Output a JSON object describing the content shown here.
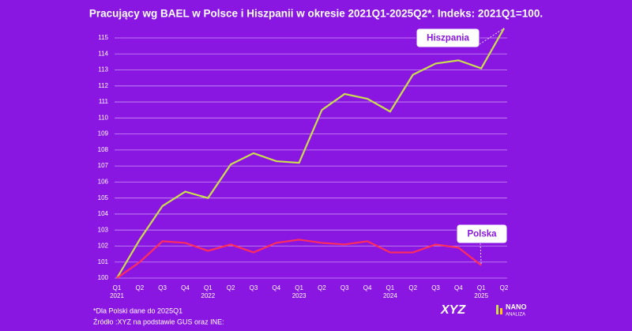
{
  "chart_data": {
    "type": "line",
    "title": "Pracujący wg BAEL w Polsce i Hiszpanii w okresie 2021Q1-2025Q2*. Indeks: 2021Q1=100.",
    "categories": [
      "Q1",
      "Q2",
      "Q3",
      "Q4",
      "Q1",
      "Q2",
      "Q3",
      "Q4",
      "Q1",
      "Q2",
      "Q3",
      "Q4",
      "Q1",
      "Q2",
      "Q3",
      "Q4",
      "Q1",
      "Q2"
    ],
    "years": [
      "2021",
      null,
      null,
      null,
      "2022",
      null,
      null,
      null,
      "2023",
      null,
      null,
      null,
      "2024",
      null,
      null,
      null,
      "2025",
      null
    ],
    "series": [
      {
        "name": "Hiszpania",
        "color": "#c9e04c",
        "values": [
          100,
          102.4,
          104.5,
          105.4,
          105.0,
          107.1,
          107.8,
          107.3,
          107.2,
          110.5,
          111.5,
          111.2,
          110.4,
          112.7,
          113.4,
          113.6,
          113.1,
          115.6
        ]
      },
      {
        "name": "Polska",
        "color": "#ff2d5c",
        "values": [
          100,
          101.0,
          102.3,
          102.2,
          101.7,
          102.1,
          101.6,
          102.2,
          102.4,
          102.2,
          102.1,
          102.3,
          101.6,
          101.6,
          102.1,
          101.9,
          100.8,
          null
        ]
      }
    ],
    "ylim": [
      100,
      115
    ],
    "yticks": [
      100,
      101,
      102,
      103,
      104,
      105,
      106,
      107,
      108,
      109,
      110,
      111,
      112,
      113,
      114,
      115
    ],
    "grid": true,
    "footnotes": [
      "*Dla Polski dane do 2025Q1",
      "Źródło :XYZ na podstawie GUS oraz INE:"
    ],
    "logo": {
      "brand": "XYZ",
      "name1": "NANO",
      "name2": "ANALIZA"
    }
  }
}
